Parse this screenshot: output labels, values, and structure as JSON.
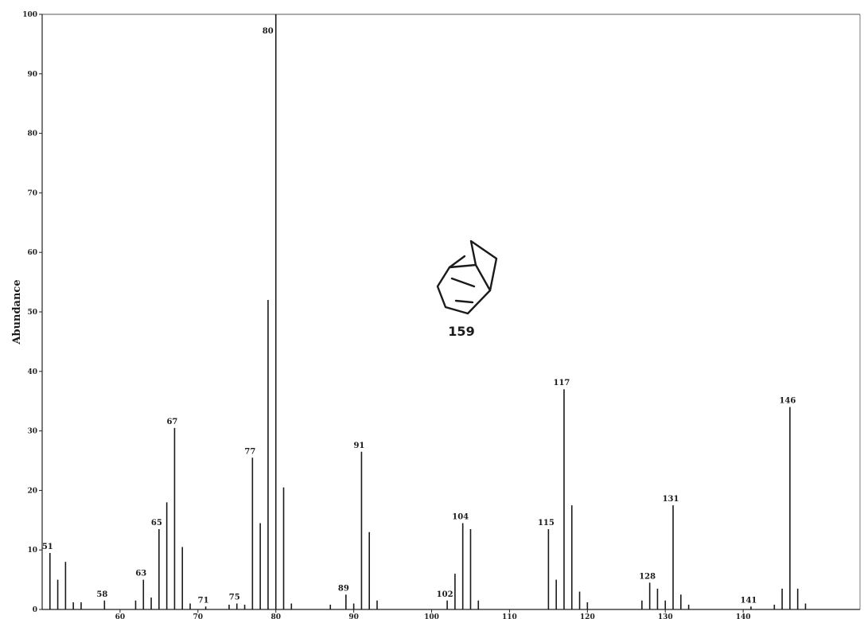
{
  "chart_data": {
    "type": "bar",
    "ylabel": "Abundance",
    "xlabel": "",
    "ylim": [
      0,
      100
    ],
    "xlim": [
      50,
      155
    ],
    "yticks": [
      0,
      10,
      20,
      30,
      40,
      50,
      60,
      70,
      80,
      90,
      100
    ],
    "xticks": [
      60,
      70,
      80,
      90,
      100,
      110,
      120,
      130,
      140
    ],
    "compound_label": "159",
    "peaks": [
      {
        "mz": 51,
        "abundance": 9.5,
        "label": "51"
      },
      {
        "mz": 52,
        "abundance": 5
      },
      {
        "mz": 53,
        "abundance": 8
      },
      {
        "mz": 54,
        "abundance": 1.2
      },
      {
        "mz": 55,
        "abundance": 1.2
      },
      {
        "mz": 58,
        "abundance": 1.5,
        "label": "58"
      },
      {
        "mz": 62,
        "abundance": 1.5
      },
      {
        "mz": 63,
        "abundance": 5,
        "label": "63"
      },
      {
        "mz": 64,
        "abundance": 2
      },
      {
        "mz": 65,
        "abundance": 13.5,
        "label": "65"
      },
      {
        "mz": 66,
        "abundance": 18
      },
      {
        "mz": 67,
        "abundance": 30.5,
        "label": "67"
      },
      {
        "mz": 68,
        "abundance": 10.5
      },
      {
        "mz": 69,
        "abundance": 1
      },
      {
        "mz": 71,
        "abundance": 0.5,
        "label": "71"
      },
      {
        "mz": 74,
        "abundance": 0.8
      },
      {
        "mz": 75,
        "abundance": 1,
        "label": "75"
      },
      {
        "mz": 76,
        "abundance": 0.8
      },
      {
        "mz": 77,
        "abundance": 25.5,
        "label": "77"
      },
      {
        "mz": 78,
        "abundance": 14.5
      },
      {
        "mz": 79,
        "abundance": 52
      },
      {
        "mz": 80,
        "abundance": 100,
        "label": "80"
      },
      {
        "mz": 81,
        "abundance": 20.5
      },
      {
        "mz": 82,
        "abundance": 1
      },
      {
        "mz": 87,
        "abundance": 0.8
      },
      {
        "mz": 89,
        "abundance": 2.5,
        "label": "89"
      },
      {
        "mz": 90,
        "abundance": 1
      },
      {
        "mz": 91,
        "abundance": 26.5,
        "label": "91"
      },
      {
        "mz": 92,
        "abundance": 13
      },
      {
        "mz": 93,
        "abundance": 1.5
      },
      {
        "mz": 102,
        "abundance": 1.5,
        "label": "102"
      },
      {
        "mz": 103,
        "abundance": 6
      },
      {
        "mz": 104,
        "abundance": 14.5,
        "label": "104"
      },
      {
        "mz": 105,
        "abundance": 13.5
      },
      {
        "mz": 106,
        "abundance": 1.5
      },
      {
        "mz": 115,
        "abundance": 13.5,
        "label": "115"
      },
      {
        "mz": 116,
        "abundance": 5
      },
      {
        "mz": 117,
        "abundance": 37,
        "label": "117"
      },
      {
        "mz": 118,
        "abundance": 17.5
      },
      {
        "mz": 119,
        "abundance": 3
      },
      {
        "mz": 120,
        "abundance": 1.2
      },
      {
        "mz": 127,
        "abundance": 1.5
      },
      {
        "mz": 128,
        "abundance": 4.5,
        "label": "128"
      },
      {
        "mz": 129,
        "abundance": 3.5
      },
      {
        "mz": 130,
        "abundance": 1.5
      },
      {
        "mz": 131,
        "abundance": 17.5,
        "label": "131"
      },
      {
        "mz": 132,
        "abundance": 2.5
      },
      {
        "mz": 133,
        "abundance": 0.8
      },
      {
        "mz": 141,
        "abundance": 0.5,
        "label": "141"
      },
      {
        "mz": 144,
        "abundance": 0.8
      },
      {
        "mz": 145,
        "abundance": 3.5
      },
      {
        "mz": 146,
        "abundance": 34,
        "label": "146"
      },
      {
        "mz": 147,
        "abundance": 3.5
      },
      {
        "mz": 148,
        "abundance": 1
      }
    ]
  }
}
